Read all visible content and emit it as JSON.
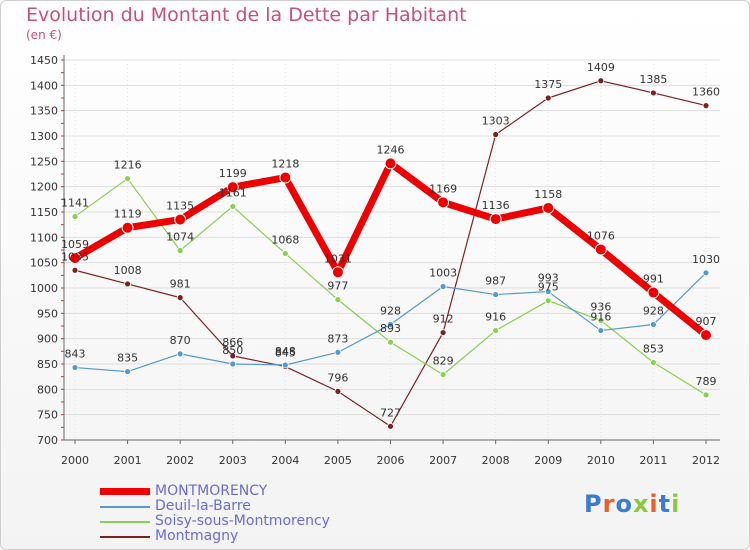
{
  "title": "Evolution du Montant de la Dette par Habitant",
  "unit": "(en €)",
  "brand": {
    "text": "Proxiti",
    "letter_colors": [
      "#3b7bd4",
      "#e8612c",
      "#3b7bd4",
      "#8ac83c",
      "#e8612c",
      "#3b7bd4",
      "#8ac83c"
    ]
  },
  "chart_data": {
    "type": "line",
    "title": "Evolution du Montant de la Dette par Habitant",
    "ylabel": "(en €)",
    "xlabel": "",
    "x": [
      "2000",
      "2001",
      "2002",
      "2003",
      "2004",
      "2005",
      "2006",
      "2007",
      "2008",
      "2009",
      "2010",
      "2011",
      "2012"
    ],
    "ylim": [
      700,
      1450
    ],
    "yticks": [
      700,
      750,
      800,
      850,
      900,
      950,
      1000,
      1050,
      1100,
      1150,
      1200,
      1250,
      1300,
      1350,
      1400,
      1450
    ],
    "grid": "horizontal",
    "legend_position": "bottom-left",
    "series": [
      {
        "name": "MONTMORENCY",
        "color": "#ee0000",
        "width": 7,
        "values": [
          1059,
          1119,
          1135,
          1199,
          1218,
          1031,
          1246,
          1169,
          1136,
          1158,
          1076,
          991,
          907
        ]
      },
      {
        "name": "Deuil-la-Barre",
        "color": "#5599d0",
        "width": 1.2,
        "values": [
          843,
          835,
          870,
          850,
          848,
          873,
          928,
          1003,
          987,
          993,
          916,
          928,
          1030
        ]
      },
      {
        "name": "Soisy-sous-Montmorency",
        "color": "#88d050",
        "width": 1.2,
        "values": [
          1141,
          1216,
          1074,
          1161,
          1068,
          977,
          893,
          829,
          916,
          975,
          936,
          853,
          789
        ]
      },
      {
        "name": "Montmagny",
        "color": "#7a2222",
        "width": 1.2,
        "values": [
          1035,
          1008,
          981,
          866,
          845,
          796,
          727,
          912,
          1303,
          1375,
          1409,
          1385,
          1360
        ]
      }
    ]
  }
}
